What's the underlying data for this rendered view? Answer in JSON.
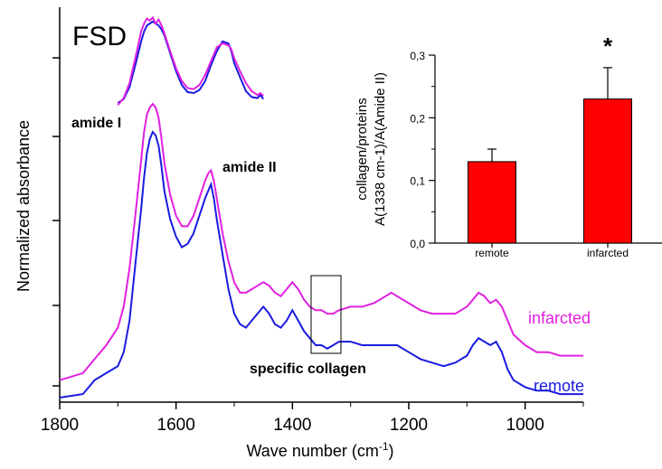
{
  "chart_data": [
    {
      "type": "line",
      "xlabel_base": "Wave number (cm",
      "xlabel_sup": "-1",
      "xlabel_end": ")",
      "ylabel": "Normalized absorbance",
      "xlim": [
        1800,
        900
      ],
      "x_reversed": true,
      "x_ticks": [
        "1800",
        "1600",
        "1400",
        "1200",
        "1000"
      ],
      "y_tick_labels_shown": false,
      "annotations": {
        "amide1": "amide I",
        "amide2": "amide II",
        "specific": "specific collagen",
        "fsd": "FSD"
      },
      "series": [
        {
          "name": "infarcted",
          "color": "#e020e0",
          "x": [
            1800,
            1760,
            1740,
            1720,
            1700,
            1690,
            1680,
            1670,
            1660,
            1655,
            1650,
            1645,
            1640,
            1635,
            1630,
            1625,
            1620,
            1610,
            1600,
            1590,
            1580,
            1570,
            1560,
            1550,
            1545,
            1540,
            1535,
            1530,
            1520,
            1510,
            1500,
            1490,
            1480,
            1470,
            1460,
            1450,
            1440,
            1430,
            1420,
            1410,
            1400,
            1390,
            1380,
            1370,
            1360,
            1350,
            1340,
            1330,
            1320,
            1300,
            1280,
            1260,
            1240,
            1230,
            1220,
            1200,
            1180,
            1160,
            1140,
            1120,
            1100,
            1090,
            1080,
            1070,
            1060,
            1050,
            1040,
            1030,
            1020,
            1000,
            980,
            960,
            940,
            920,
            900
          ],
          "y": [
            0.05,
            0.07,
            0.11,
            0.15,
            0.2,
            0.26,
            0.37,
            0.52,
            0.68,
            0.76,
            0.81,
            0.83,
            0.84,
            0.83,
            0.8,
            0.74,
            0.67,
            0.58,
            0.52,
            0.49,
            0.49,
            0.52,
            0.57,
            0.62,
            0.64,
            0.65,
            0.62,
            0.57,
            0.47,
            0.39,
            0.33,
            0.3,
            0.3,
            0.31,
            0.32,
            0.33,
            0.32,
            0.3,
            0.29,
            0.31,
            0.33,
            0.31,
            0.28,
            0.26,
            0.25,
            0.25,
            0.24,
            0.24,
            0.25,
            0.26,
            0.26,
            0.27,
            0.29,
            0.3,
            0.29,
            0.27,
            0.25,
            0.24,
            0.24,
            0.24,
            0.26,
            0.28,
            0.3,
            0.29,
            0.27,
            0.28,
            0.26,
            0.22,
            0.18,
            0.15,
            0.13,
            0.13,
            0.12,
            0.12,
            0.12
          ]
        },
        {
          "name": "remote",
          "color": "#1a1ae0",
          "x": [
            1800,
            1760,
            1740,
            1720,
            1700,
            1690,
            1680,
            1670,
            1660,
            1655,
            1650,
            1645,
            1640,
            1635,
            1630,
            1625,
            1620,
            1610,
            1600,
            1590,
            1580,
            1570,
            1560,
            1550,
            1545,
            1540,
            1535,
            1530,
            1520,
            1510,
            1500,
            1490,
            1480,
            1470,
            1460,
            1450,
            1440,
            1430,
            1420,
            1410,
            1400,
            1390,
            1380,
            1370,
            1360,
            1350,
            1340,
            1330,
            1320,
            1300,
            1280,
            1260,
            1240,
            1230,
            1220,
            1200,
            1180,
            1160,
            1140,
            1120,
            1100,
            1090,
            1080,
            1070,
            1060,
            1050,
            1040,
            1030,
            1020,
            1000,
            980,
            960,
            940,
            920,
            900
          ],
          "y": [
            0.0,
            0.01,
            0.05,
            0.07,
            0.09,
            0.13,
            0.22,
            0.38,
            0.54,
            0.63,
            0.7,
            0.74,
            0.76,
            0.75,
            0.72,
            0.66,
            0.59,
            0.51,
            0.46,
            0.43,
            0.44,
            0.47,
            0.52,
            0.57,
            0.59,
            0.61,
            0.57,
            0.51,
            0.41,
            0.31,
            0.24,
            0.21,
            0.2,
            0.22,
            0.24,
            0.26,
            0.24,
            0.21,
            0.2,
            0.22,
            0.25,
            0.22,
            0.19,
            0.17,
            0.15,
            0.15,
            0.14,
            0.15,
            0.16,
            0.16,
            0.15,
            0.15,
            0.15,
            0.15,
            0.15,
            0.13,
            0.11,
            0.1,
            0.09,
            0.1,
            0.12,
            0.15,
            0.17,
            0.16,
            0.15,
            0.16,
            0.13,
            0.08,
            0.05,
            0.03,
            0.02,
            0.02,
            0.01,
            0.01,
            0.01
          ]
        }
      ],
      "inset_fsd": {
        "x": [
          1700,
          1690,
          1680,
          1670,
          1660,
          1655,
          1650,
          1645,
          1640,
          1635,
          1630,
          1625,
          1620,
          1610,
          1600,
          1590,
          1580,
          1570,
          1560,
          1550,
          1540,
          1530,
          1520,
          1510,
          1505,
          1500,
          1490,
          1480,
          1470,
          1460,
          1455,
          1450
        ],
        "infarcted": [
          0.08,
          0.15,
          0.3,
          0.55,
          0.82,
          0.9,
          0.95,
          0.93,
          0.96,
          0.9,
          0.94,
          0.88,
          0.8,
          0.62,
          0.45,
          0.32,
          0.25,
          0.24,
          0.28,
          0.38,
          0.52,
          0.66,
          0.7,
          0.68,
          0.64,
          0.55,
          0.42,
          0.3,
          0.22,
          0.18,
          0.2,
          0.17
        ],
        "remote": [
          0.1,
          0.14,
          0.26,
          0.48,
          0.72,
          0.82,
          0.88,
          0.9,
          0.92,
          0.9,
          0.88,
          0.84,
          0.78,
          0.6,
          0.42,
          0.28,
          0.21,
          0.2,
          0.23,
          0.32,
          0.48,
          0.62,
          0.72,
          0.7,
          0.62,
          0.5,
          0.36,
          0.22,
          0.16,
          0.15,
          0.18,
          0.14
        ]
      }
    },
    {
      "type": "bar",
      "ylabel_lines": [
        "collagen/proteins",
        "A(1338 cm-1)/A(Amide II)"
      ],
      "categories": [
        "remote",
        "infarcted"
      ],
      "values": [
        0.13,
        0.23
      ],
      "errors": [
        0.02,
        0.05
      ],
      "ylim": [
        0.0,
        0.3
      ],
      "y_ticks": [
        "0,0",
        "0,1",
        "0,2",
        "0,3"
      ],
      "bar_color": "#ff0000",
      "significance": "*"
    }
  ]
}
